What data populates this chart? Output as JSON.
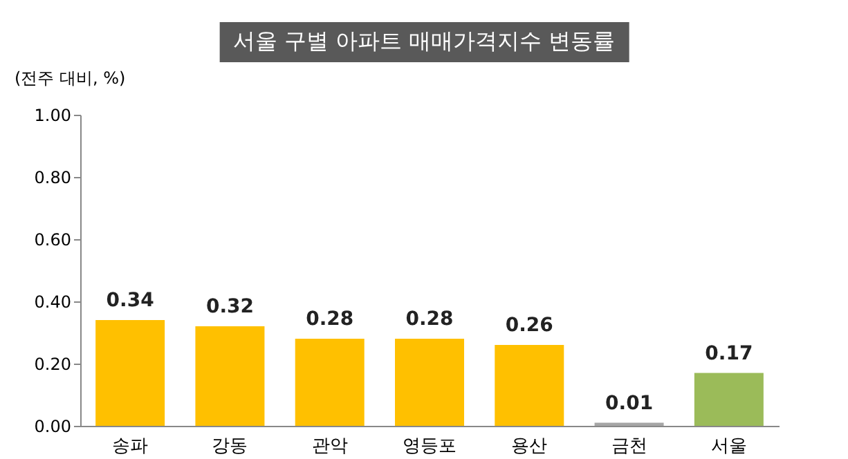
{
  "chart_data": {
    "type": "bar",
    "title": "서울 구별 아파트 매매가격지수 변동률",
    "ylabel": "(전주 대비, %)",
    "categories": [
      "송파",
      "강동",
      "관악",
      "영등포",
      "용산",
      "금천",
      "서울"
    ],
    "values": [
      0.34,
      0.32,
      0.28,
      0.28,
      0.26,
      0.01,
      0.17
    ],
    "colors": [
      "#ffc000",
      "#ffc000",
      "#ffc000",
      "#ffc000",
      "#ffc000",
      "#a6a6a6",
      "#9bbb59"
    ],
    "value_labels": [
      "0.34",
      "0.32",
      "0.28",
      "0.28",
      "0.26",
      "0.01",
      "0.17"
    ],
    "ylim": [
      0,
      1
    ],
    "yticks": [
      {
        "value": 0,
        "label": "0.00"
      },
      {
        "value": 0.2,
        "label": "0.20"
      },
      {
        "value": 0.4,
        "label": "0.40"
      },
      {
        "value": 0.6,
        "label": "0.60"
      },
      {
        "value": 0.8,
        "label": "0.80"
      },
      {
        "value": 1,
        "label": "1.00"
      }
    ],
    "grid": false
  }
}
